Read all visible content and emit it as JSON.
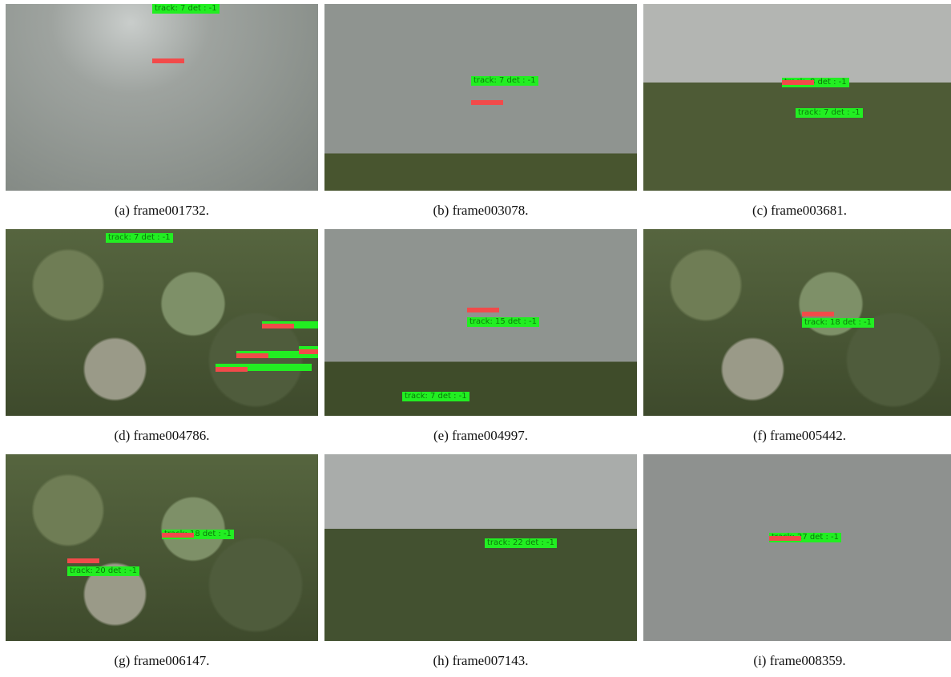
{
  "panels": [
    {
      "caption": "(a) frame001732.",
      "tags": [
        "track: 7 det : -1"
      ]
    },
    {
      "caption": "(b) frame003078.",
      "tags": [
        "track: 7 det : -1"
      ]
    },
    {
      "caption": "(c) frame003681.",
      "tags": [
        "track: 8 det : -1",
        "track: 7 det : -1"
      ]
    },
    {
      "caption": "(d) frame004786.",
      "tags": [
        "track: 7 det : -1"
      ]
    },
    {
      "caption": "(e) frame004997.",
      "tags": [
        "track: 15 det : -1",
        "track: 7 det : -1"
      ]
    },
    {
      "caption": "(f) frame005442.",
      "tags": [
        "track: 18 det : -1"
      ]
    },
    {
      "caption": "(g) frame006147.",
      "tags": [
        "track: 18 det : -1",
        "track: 20 det : -1"
      ]
    },
    {
      "caption": "(h) frame007143.",
      "tags": [
        "track: 22 det : -1"
      ]
    },
    {
      "caption": "(i) frame008359.",
      "tags": [
        "track: 27 det : -1"
      ]
    }
  ]
}
